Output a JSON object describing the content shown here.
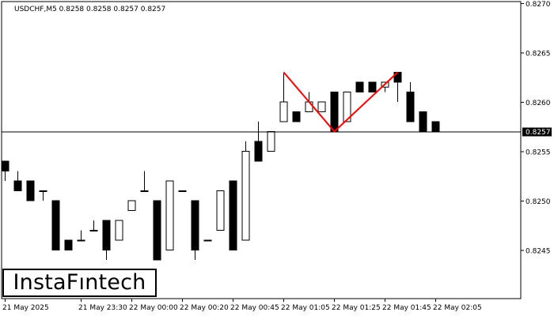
{
  "header": {
    "symbol_line": "USDCHF,M5  0.8258 0.8258 0.8257 0.8257"
  },
  "logo": {
    "text": "InstaFıntech"
  },
  "current_price": {
    "label": "0.8257",
    "value": 0.8257
  },
  "colors": {
    "pattern_line": "#ff0000",
    "candle_bear": "#000000",
    "candle_bull": "#ffffff",
    "price_tag_bg": "#000000"
  },
  "chart_data": {
    "type": "candlestick",
    "symbol": "USDCHF",
    "timeframe": "M5",
    "ylim": [
      0.824,
      0.827
    ],
    "y_ticks": [
      "0.8270",
      "0.8265",
      "0.8260",
      "0.8255",
      "0.8250",
      "0.8245"
    ],
    "x_ticks": [
      "21 May 2025",
      "21 May 23:30",
      "22 May 00:00",
      "22 May 00:20",
      "22 May 00:45",
      "22 May 01:05",
      "22 May 01:25",
      "22 May 01:45",
      "22 May 02:05"
    ],
    "x_tick_bars": [
      0,
      6,
      10,
      14,
      18,
      22,
      26,
      30,
      34
    ],
    "candles": [
      {
        "o": 0.8254,
        "h": 0.8254,
        "l": 0.8252,
        "c": 0.8253
      },
      {
        "o": 0.8252,
        "h": 0.8253,
        "l": 0.8251,
        "c": 0.8251
      },
      {
        "o": 0.8252,
        "h": 0.8252,
        "l": 0.825,
        "c": 0.825
      },
      {
        "o": 0.8251,
        "h": 0.8251,
        "l": 0.825,
        "c": 0.8251
      },
      {
        "o": 0.825,
        "h": 0.825,
        "l": 0.8245,
        "c": 0.8245
      },
      {
        "o": 0.8246,
        "h": 0.8246,
        "l": 0.8245,
        "c": 0.8245
      },
      {
        "o": 0.8246,
        "h": 0.8247,
        "l": 0.8246,
        "c": 0.8246
      },
      {
        "o": 0.8247,
        "h": 0.8248,
        "l": 0.8247,
        "c": 0.8247
      },
      {
        "o": 0.8248,
        "h": 0.8248,
        "l": 0.8244,
        "c": 0.8245
      },
      {
        "o": 0.8246,
        "h": 0.8248,
        "l": 0.8246,
        "c": 0.8248
      },
      {
        "o": 0.8249,
        "h": 0.825,
        "l": 0.8249,
        "c": 0.825
      },
      {
        "o": 0.8251,
        "h": 0.8253,
        "l": 0.8251,
        "c": 0.8251
      },
      {
        "o": 0.825,
        "h": 0.825,
        "l": 0.8244,
        "c": 0.8244
      },
      {
        "o": 0.8245,
        "h": 0.8252,
        "l": 0.8245,
        "c": 0.8252
      },
      {
        "o": 0.8251,
        "h": 0.8251,
        "l": 0.8251,
        "c": 0.8251
      },
      {
        "o": 0.825,
        "h": 0.825,
        "l": 0.8244,
        "c": 0.8245
      },
      {
        "o": 0.8246,
        "h": 0.8246,
        "l": 0.8246,
        "c": 0.8246
      },
      {
        "o": 0.8247,
        "h": 0.8251,
        "l": 0.8247,
        "c": 0.8251
      },
      {
        "o": 0.8252,
        "h": 0.8252,
        "l": 0.8245,
        "c": 0.8245
      },
      {
        "o": 0.8246,
        "h": 0.8256,
        "l": 0.8246,
        "c": 0.8255
      },
      {
        "o": 0.8256,
        "h": 0.8258,
        "l": 0.8254,
        "c": 0.8254
      },
      {
        "o": 0.8255,
        "h": 0.8257,
        "l": 0.8255,
        "c": 0.8257
      },
      {
        "o": 0.8258,
        "h": 0.8263,
        "l": 0.8258,
        "c": 0.826
      },
      {
        "o": 0.8259,
        "h": 0.8259,
        "l": 0.8258,
        "c": 0.8258
      },
      {
        "o": 0.8259,
        "h": 0.8261,
        "l": 0.8259,
        "c": 0.826
      },
      {
        "o": 0.8259,
        "h": 0.826,
        "l": 0.8259,
        "c": 0.826
      },
      {
        "o": 0.8261,
        "h": 0.8261,
        "l": 0.8257,
        "c": 0.8257
      },
      {
        "o": 0.8258,
        "h": 0.8261,
        "l": 0.8258,
        "c": 0.8261
      },
      {
        "o": 0.8262,
        "h": 0.8262,
        "l": 0.8261,
        "c": 0.8261
      },
      {
        "o": 0.8262,
        "h": 0.8262,
        "l": 0.8261,
        "c": 0.8261
      },
      {
        "o": 0.82615,
        "h": 0.8262,
        "l": 0.8261,
        "c": 0.8262
      },
      {
        "o": 0.8263,
        "h": 0.8263,
        "l": 0.826,
        "c": 0.8262
      },
      {
        "o": 0.8261,
        "h": 0.8262,
        "l": 0.8258,
        "c": 0.8258
      },
      {
        "o": 0.8259,
        "h": 0.8259,
        "l": 0.8257,
        "c": 0.8257
      },
      {
        "o": 0.8258,
        "h": 0.8258,
        "l": 0.8257,
        "c": 0.8257
      }
    ],
    "pattern_line_points": [
      {
        "bar": 22,
        "price": 0.8263
      },
      {
        "bar": 26,
        "price": 0.8257
      },
      {
        "bar": 31,
        "price": 0.8263
      }
    ],
    "horizontal_line": 0.8257
  }
}
